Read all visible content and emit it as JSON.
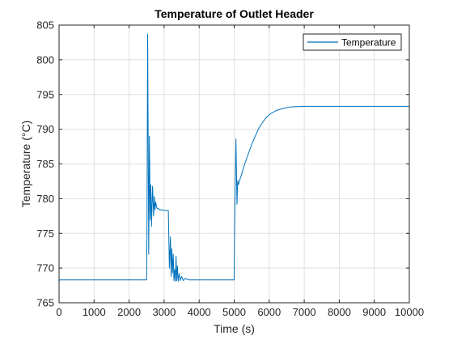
{
  "chart_data": {
    "type": "line",
    "title": "Temperature of Outlet Header",
    "xlabel": "Time (s)",
    "ylabel": "Temperature (°C)",
    "xlim": [
      0,
      10000
    ],
    "ylim": [
      765,
      805
    ],
    "xticks": [
      0,
      1000,
      2000,
      3000,
      4000,
      5000,
      6000,
      7000,
      8000,
      9000,
      10000
    ],
    "yticks": [
      765,
      770,
      775,
      780,
      785,
      790,
      795,
      800,
      805
    ],
    "grid": true,
    "legend_position": "top-right",
    "series": [
      {
        "name": "Temperature",
        "color": "#0072BD",
        "x": [
          0,
          10,
          2500,
          2510,
          2530,
          2560,
          2580,
          2600,
          2620,
          2640,
          2650,
          2670,
          2700,
          2720,
          2740,
          2760,
          2780,
          2800,
          2820,
          2840,
          2860,
          2880,
          2900,
          2940,
          2980,
          3050,
          3120,
          3150,
          3180,
          3200,
          3220,
          3240,
          3260,
          3280,
          3300,
          3320,
          3340,
          3360,
          3380,
          3400,
          3430,
          3460,
          3500,
          3550,
          3600,
          3700,
          3800,
          4000,
          4500,
          5000,
          5010,
          5050,
          5080,
          5100,
          5120,
          5150,
          5180,
          5200,
          5250,
          5300,
          5400,
          5500,
          5600,
          5700,
          5800,
          5900,
          6000,
          6200,
          6400,
          6600,
          6800,
          7000,
          7500,
          8000,
          9000,
          10000
        ],
        "y": [
          768.0,
          768.3,
          768.3,
          775.0,
          803.7,
          772.0,
          789.0,
          777.0,
          782.0,
          776.0,
          778.0,
          781.8,
          777.5,
          780.3,
          778.4,
          779.5,
          778.9,
          778.6,
          778.6,
          778.5,
          778.5,
          778.4,
          778.4,
          778.4,
          778.3,
          778.3,
          778.3,
          770.0,
          774.5,
          768.8,
          772.8,
          769.3,
          772.0,
          768.2,
          769.8,
          768.1,
          771.7,
          768.2,
          770.3,
          768.1,
          769.2,
          768.2,
          768.8,
          768.2,
          768.5,
          768.3,
          768.3,
          768.3,
          768.3,
          768.3,
          775.0,
          788.6,
          779.2,
          782.6,
          782.0,
          782.6,
          783.0,
          783.3,
          784.2,
          785.0,
          786.4,
          787.8,
          789.0,
          790.1,
          790.9,
          791.6,
          792.1,
          792.7,
          793.0,
          793.2,
          793.25,
          793.3,
          793.3,
          793.3,
          793.3,
          793.3
        ]
      }
    ]
  }
}
